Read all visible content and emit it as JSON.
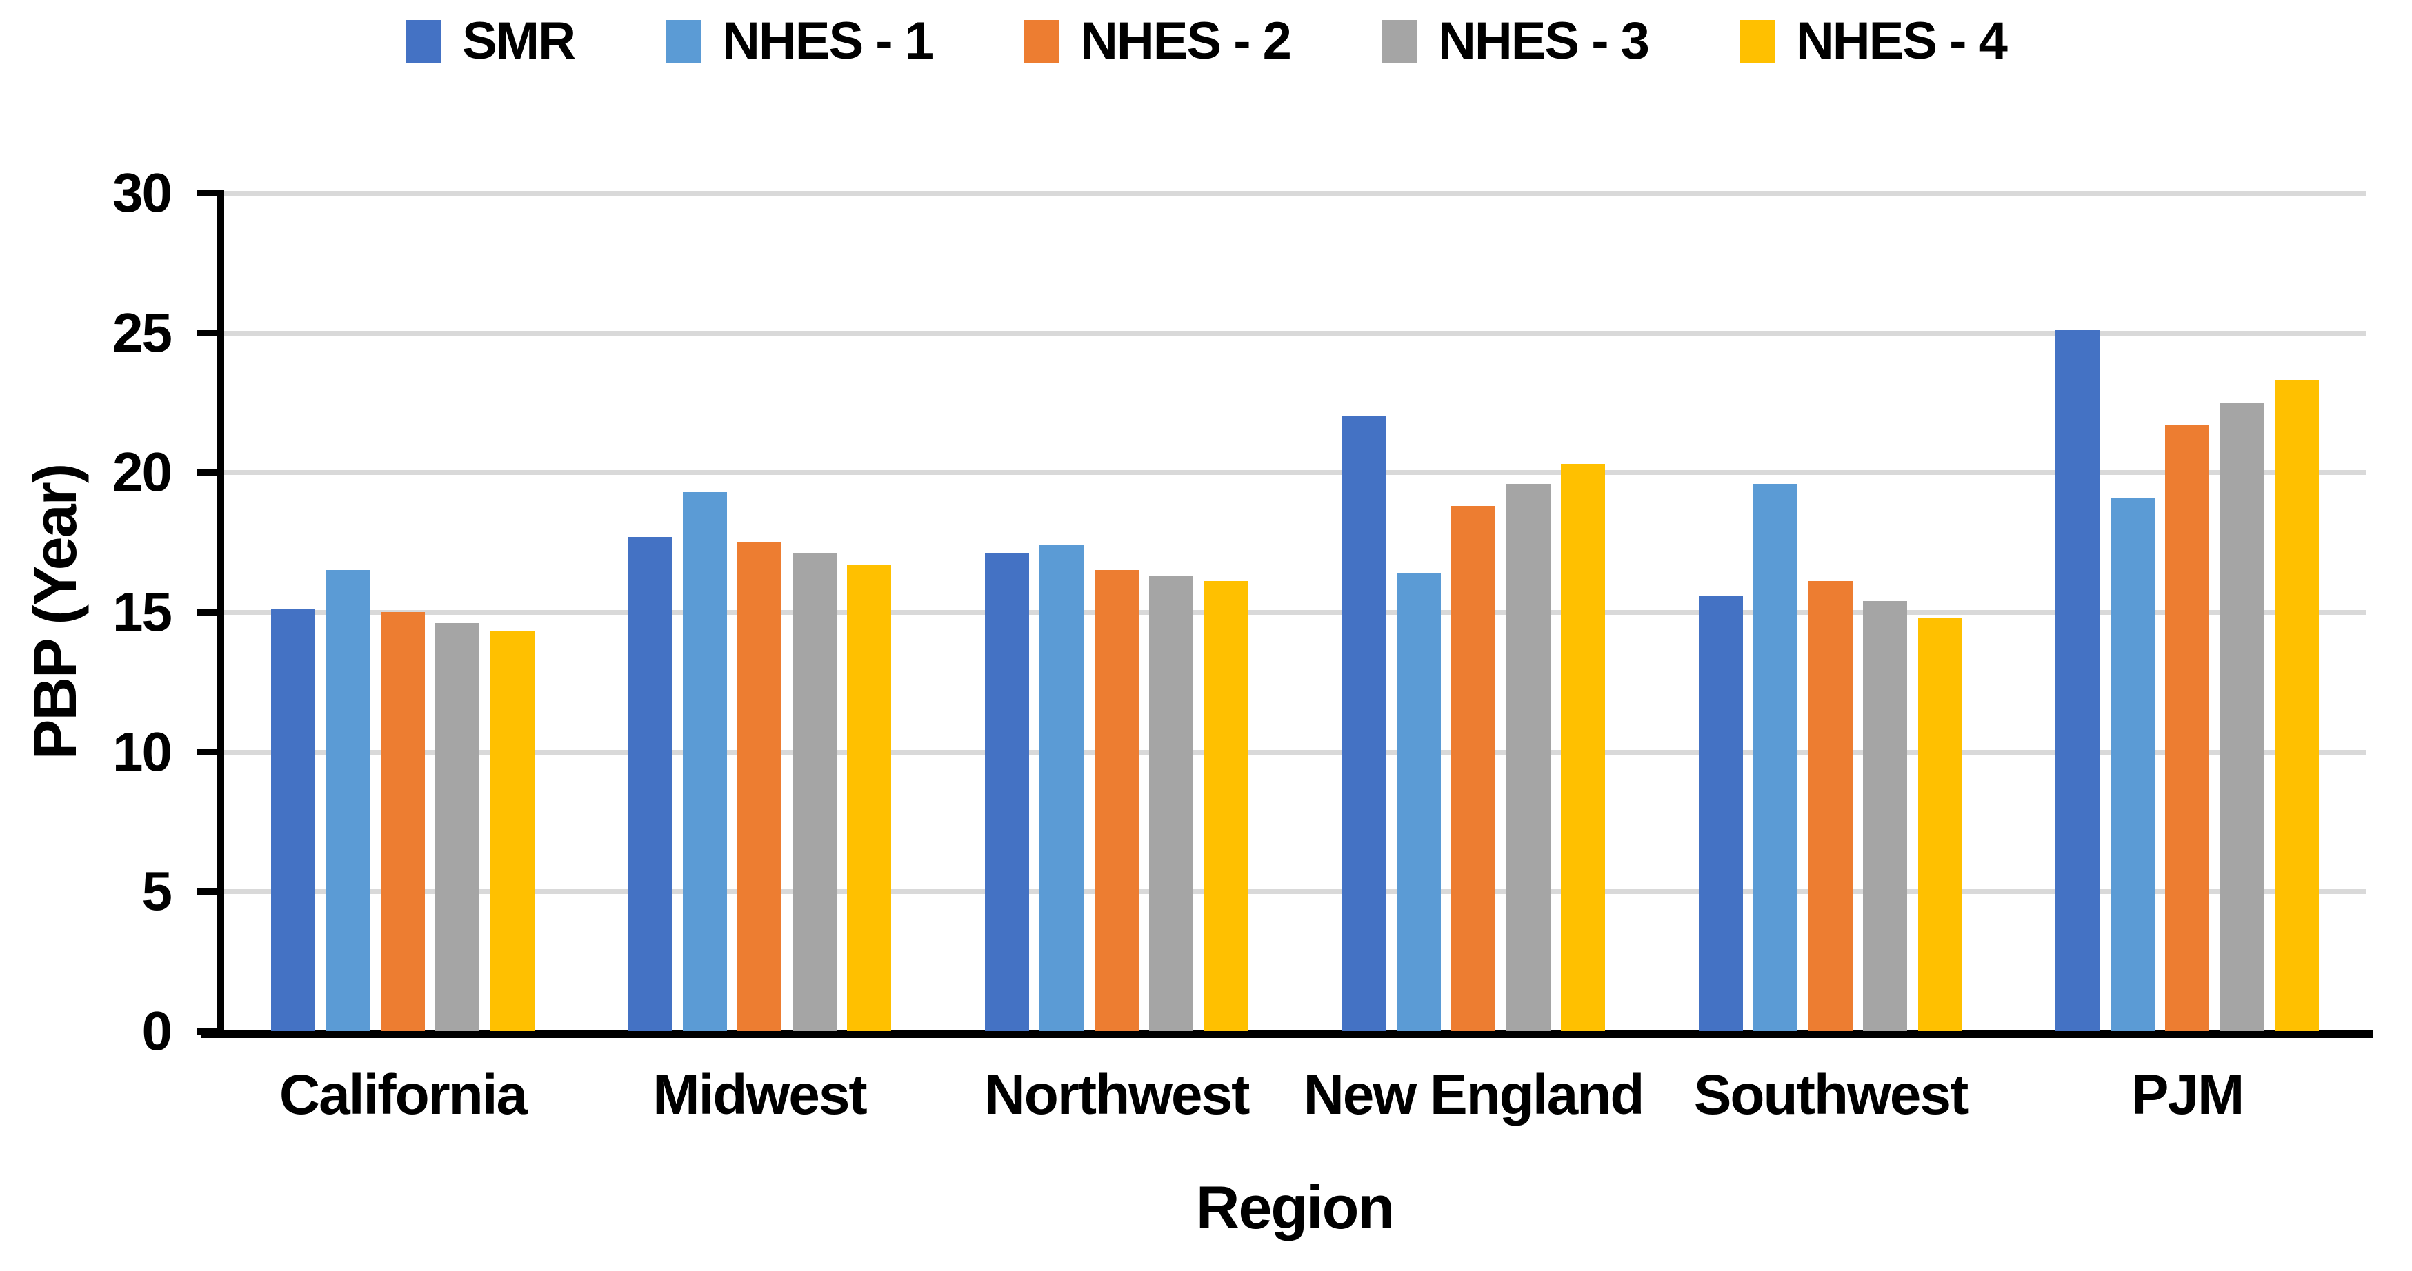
{
  "chart_data": {
    "type": "bar",
    "title": "",
    "categories": [
      "California",
      "Midwest",
      "Northwest",
      "New England",
      "Southwest",
      "PJM"
    ],
    "series": [
      {
        "name": "SMR",
        "color": "#4472C4",
        "values": [
          15.1,
          17.7,
          17.1,
          22.0,
          15.6,
          25.1
        ]
      },
      {
        "name": "NHES - 1",
        "color": "#5B9BD5",
        "values": [
          16.5,
          19.3,
          17.4,
          16.4,
          19.6,
          19.1
        ]
      },
      {
        "name": "NHES - 2",
        "color": "#ED7D31",
        "values": [
          15.0,
          17.5,
          16.5,
          18.8,
          16.1,
          21.7
        ]
      },
      {
        "name": "NHES - 3",
        "color": "#A5A5A5",
        "values": [
          14.6,
          17.1,
          16.3,
          19.6,
          15.4,
          22.5
        ]
      },
      {
        "name": "NHES - 4",
        "color": "#FFC000",
        "values": [
          14.3,
          16.7,
          16.1,
          20.3,
          14.8,
          23.3
        ]
      }
    ],
    "xlabel": "Region",
    "ylabel": "PBP (Year)",
    "ylim": [
      0,
      30
    ],
    "yticks": [
      0,
      5,
      10,
      15,
      20,
      25,
      30
    ],
    "grid": true,
    "legend_position": "top",
    "colors": {
      "gridline": "#D9D9D9",
      "axis": "#000000",
      "text": "#000000",
      "background": "#FFFFFF"
    }
  }
}
